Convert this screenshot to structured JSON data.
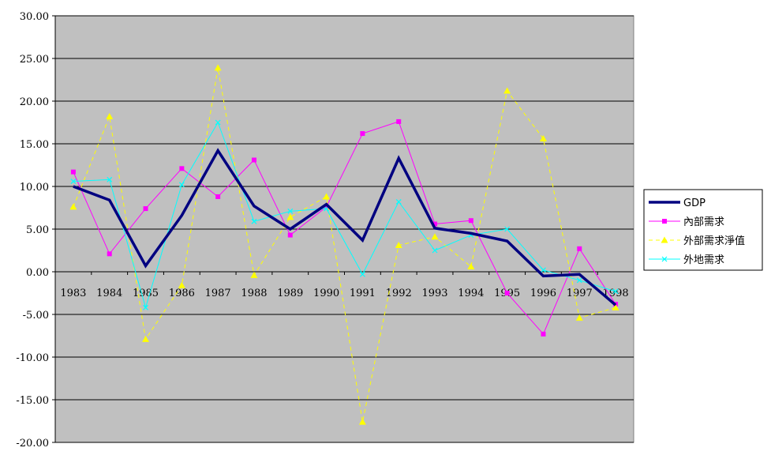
{
  "chart_data": {
    "type": "line",
    "title": "",
    "xlabel": "",
    "ylabel": "",
    "categories": [
      "1983",
      "1984",
      "1985",
      "1986",
      "1987",
      "1988",
      "1989",
      "1990",
      "1991",
      "1992",
      "1993",
      "1994",
      "1995",
      "1996",
      "1997",
      "1998"
    ],
    "ylim": [
      -20,
      30
    ],
    "yticks": [
      "30.00",
      "25.00",
      "20.00",
      "15.00",
      "10.00",
      "5.00",
      "0.00",
      "-5.00",
      "-10.00",
      "-15.00",
      "-20.00"
    ],
    "grid": "horizontal",
    "legend_position": "right",
    "plot_background": "#c0c0c0",
    "series": [
      {
        "name": "GDP",
        "color": "#000080",
        "style": "solid-thick",
        "marker": "none",
        "values": [
          10.0,
          8.4,
          0.7,
          6.6,
          14.2,
          7.7,
          5.0,
          7.9,
          3.7,
          13.3,
          5.1,
          4.5,
          3.6,
          -0.5,
          -0.3,
          -3.9
        ]
      },
      {
        "name": "內部需求",
        "color": "#ff00ff",
        "style": "solid",
        "marker": "square",
        "values": [
          11.7,
          2.1,
          7.4,
          12.1,
          8.8,
          13.1,
          4.3,
          7.6,
          16.2,
          17.6,
          5.6,
          6.0,
          -2.5,
          -7.3,
          2.7,
          -3.8
        ]
      },
      {
        "name": "外部需求淨值",
        "color": "#ffff00",
        "style": "dashed",
        "marker": "triangle",
        "values": [
          7.6,
          18.2,
          -7.9,
          -1.6,
          23.9,
          -0.4,
          6.4,
          8.8,
          -17.6,
          3.1,
          4.1,
          0.6,
          21.2,
          15.6,
          -5.4,
          -4.2
        ]
      },
      {
        "name": "外地需求",
        "color": "#00ffff",
        "style": "solid",
        "marker": "x",
        "values": [
          10.6,
          10.8,
          -4.2,
          10.2,
          17.5,
          5.9,
          7.1,
          7.4,
          -0.3,
          8.2,
          2.5,
          4.3,
          5.0,
          0.2,
          -1.0,
          -2.3
        ]
      }
    ]
  }
}
